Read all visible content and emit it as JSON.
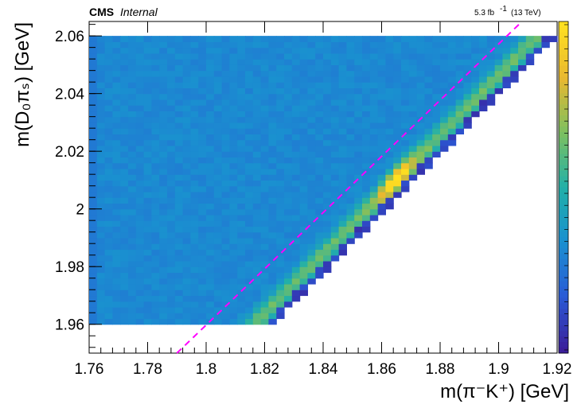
{
  "header": {
    "experiment": "CMS",
    "status": "Internal",
    "lumi_value": "5.3 fb",
    "lumi_exp": "-1",
    "energy": "(13 TeV)"
  },
  "chart_data": {
    "type": "heatmap",
    "title": "",
    "xlabel": "m(π⁻K⁺) [GeV]",
    "ylabel": "m(D₀πₛ) [GeV]",
    "xlim": [
      1.76,
      1.92
    ],
    "ylim": [
      1.95,
      2.065
    ],
    "x_ticks": [
      "1.76",
      "1.78",
      "1.8",
      "1.82",
      "1.84",
      "1.86",
      "1.88",
      "1.9",
      "1.92"
    ],
    "y_ticks": [
      "1.96",
      "1.98",
      "2",
      "2.02",
      "2.04",
      "2.06"
    ],
    "filled_region": {
      "x_min": 1.76,
      "y_min": 1.96,
      "y_max": 2.06,
      "upper_edge_x_at_y_min": 1.823,
      "upper_edge_x_at_y_max": 1.92
    },
    "signal_band": {
      "description": "peak near m(pi K) = 1.865 along kinematic edge",
      "peak_x": 1.865,
      "peak_y": 2.01
    },
    "dashed_line": {
      "color": "#ff00ff",
      "points": [
        [
          1.79,
          1.95
        ],
        [
          1.908,
          2.065
        ]
      ]
    },
    "colorbar": [
      "#3b1e9a",
      "#2a5bd6",
      "#1a90d0",
      "#22b0a8",
      "#7cc060",
      "#e8b830",
      "#ffe020"
    ],
    "grid": false,
    "legend": "none"
  }
}
